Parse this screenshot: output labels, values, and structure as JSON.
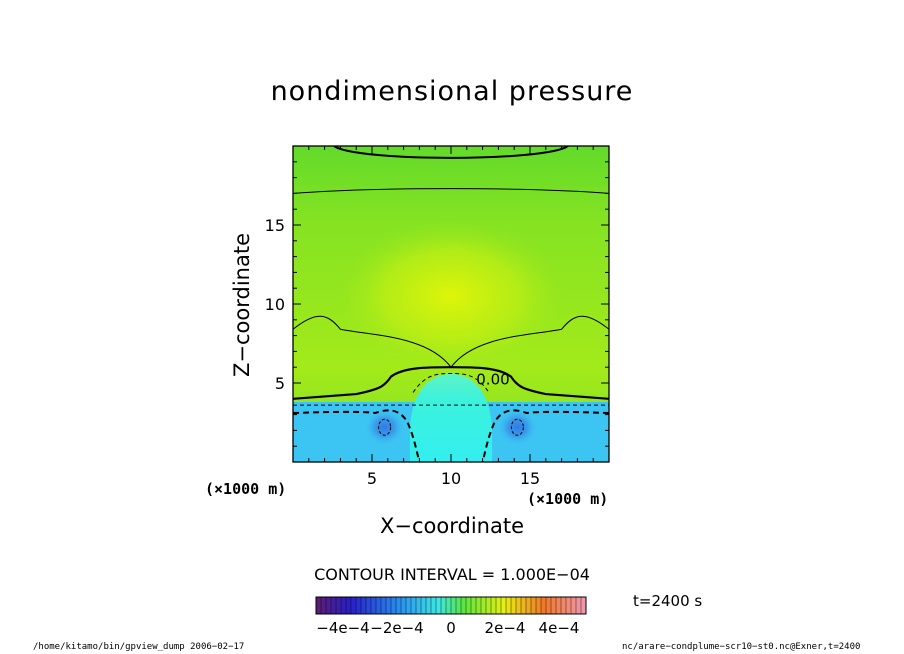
{
  "chart_data": {
    "type": "heatmap",
    "title": "nondimensional pressure",
    "xlabel": "X−coordinate",
    "ylabel": "Z−coordinate",
    "x_unit_label": "(×1000 m)",
    "y_unit_label": "(×1000 m)",
    "xlim": [
      0,
      20
    ],
    "ylim": [
      0,
      20
    ],
    "x_ticks": [
      "5",
      "10",
      "15"
    ],
    "y_ticks": [
      "5",
      "10",
      "15"
    ],
    "x_tick_values": [
      5,
      10,
      15
    ],
    "y_tick_values": [
      5,
      10,
      15
    ],
    "contour_interval_text": "CONTOUR INTERVAL = 1.000E−04",
    "contour_label": "0.00",
    "colorbar": {
      "range": [
        -0.0005,
        0.0005
      ],
      "tick_labels": [
        "−4e−4",
        "−2e−4",
        "0",
        "2e−4",
        "4e−4"
      ],
      "tick_values": [
        -0.0004,
        -0.0002,
        0,
        0.0002,
        0.0004
      ]
    },
    "regions": [
      {
        "name": "upper",
        "z_range": [
          4,
          20
        ],
        "value_range": [
          0.0001,
          0.0002
        ]
      },
      {
        "name": "core",
        "z_range": [
          0,
          5.5
        ],
        "x_range": [
          7.5,
          12.5
        ],
        "value_range": [
          -0.0001,
          0
        ]
      },
      {
        "name": "lower",
        "z_range": [
          0,
          4
        ],
        "value_range": [
          -0.0002,
          -0.0001
        ]
      }
    ],
    "colors": {
      "upper_top": "#6bdd28",
      "upper_center": "#d2f20a",
      "core": "#3ff2e0",
      "lower": "#3cc4f2",
      "minima": "#3b8ee8"
    },
    "grid": false,
    "legend": "bottom (colorbar)"
  },
  "time_text": "t=2400 s",
  "footer_left": "/home/kitamo/bin/gpview_dump  2006−02−17",
  "footer_right": "nc/arare−condplume−scr10−st0.nc@Exner,t=2400"
}
